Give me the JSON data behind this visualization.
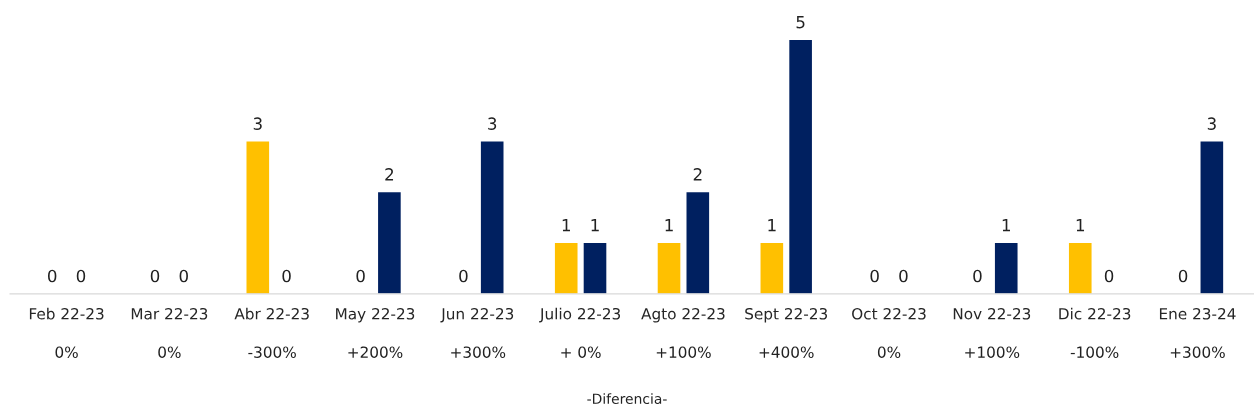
{
  "chart_data": {
    "type": "bar",
    "categories": [
      "Feb 22-23",
      "Mar 22-23",
      "Abr 22-23",
      "May 22-23",
      "Jun 22-23",
      "Julio 22-23",
      "Agto 22-23",
      "Sept 22-23",
      "Oct 22-23",
      "Nov 22-23",
      "Dic 22-23",
      "Ene 23-24"
    ],
    "series": [
      {
        "color": "#ffc000",
        "values": [
          0,
          0,
          3,
          0,
          0,
          1,
          1,
          1,
          0,
          0,
          1,
          0
        ]
      },
      {
        "color": "#002060",
        "values": [
          0,
          0,
          0,
          2,
          3,
          1,
          2,
          5,
          0,
          1,
          0,
          3
        ]
      }
    ],
    "data_labels": true,
    "grid": false,
    "legend": false,
    "tick_labels": "x",
    "annotations": [
      "0%",
      "0%",
      "-300%",
      "+200%",
      "+300%",
      "+ 0%",
      "+100%",
      "+400%",
      "0%",
      "+100%",
      "-100%",
      "+300%",
      "-Diferencia-"
    ]
  }
}
